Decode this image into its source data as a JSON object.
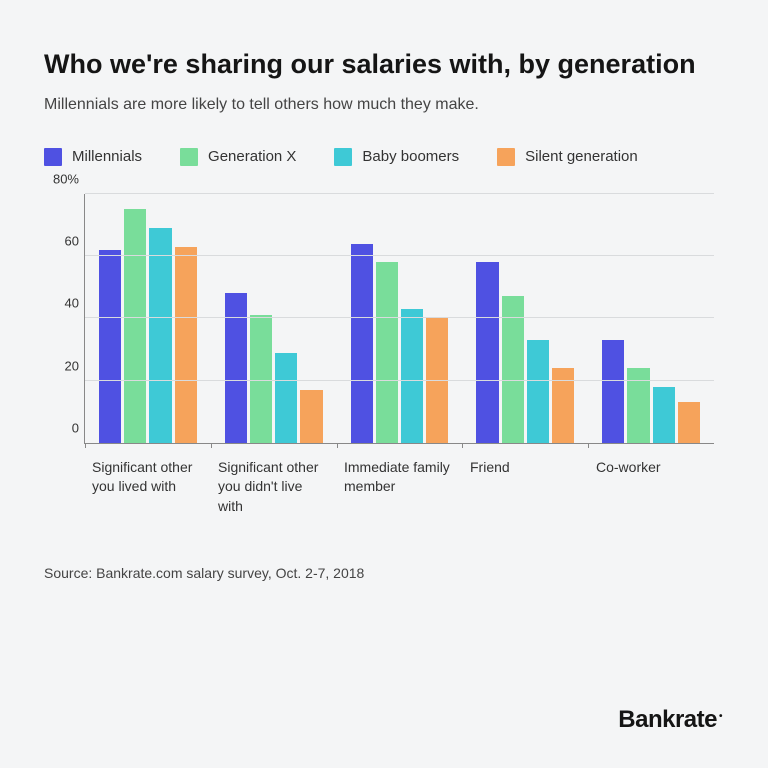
{
  "title": "Who we're sharing our salaries with, by generation",
  "subtitle": "Millennials are more likely to tell others how much they make.",
  "source": "Source: Bankrate.com salary survey, Oct. 2-7, 2018",
  "brand": "Bankrate",
  "chart": {
    "type": "bar",
    "ylim": [
      0,
      80
    ],
    "ytick_step": 20,
    "yticks": [
      {
        "value": 0,
        "label": "0"
      },
      {
        "value": 20,
        "label": "20"
      },
      {
        "value": 40,
        "label": "40"
      },
      {
        "value": 60,
        "label": "60"
      },
      {
        "value": 80,
        "label": "80%"
      }
    ],
    "background_color": "#f4f5f6",
    "grid_color": "#d9dbdd",
    "axis_color": "#888888",
    "title_fontsize": 27,
    "subtitle_fontsize": 16,
    "legend_fontsize": 15,
    "tick_fontsize": 13,
    "xlabel_fontsize": 14,
    "source_fontsize": 14,
    "brand_fontsize": 24,
    "series": [
      {
        "name": "Millennials",
        "color": "#4f51e2"
      },
      {
        "name": "Generation X",
        "color": "#79dd9a"
      },
      {
        "name": "Baby boomers",
        "color": "#3ec9d6"
      },
      {
        "name": "Silent generation",
        "color": "#f6a35b"
      }
    ],
    "categories": [
      {
        "label": "Significant other you lived with",
        "values": [
          62,
          75,
          69,
          63
        ]
      },
      {
        "label": "Significant other you didn't live with",
        "values": [
          48,
          41,
          29,
          17
        ]
      },
      {
        "label": "Immediate family member",
        "values": [
          64,
          58,
          43,
          40
        ]
      },
      {
        "label": "Friend",
        "values": [
          58,
          47,
          33,
          24
        ]
      },
      {
        "label": "Co-worker",
        "values": [
          33,
          24,
          18,
          13
        ]
      }
    ]
  }
}
